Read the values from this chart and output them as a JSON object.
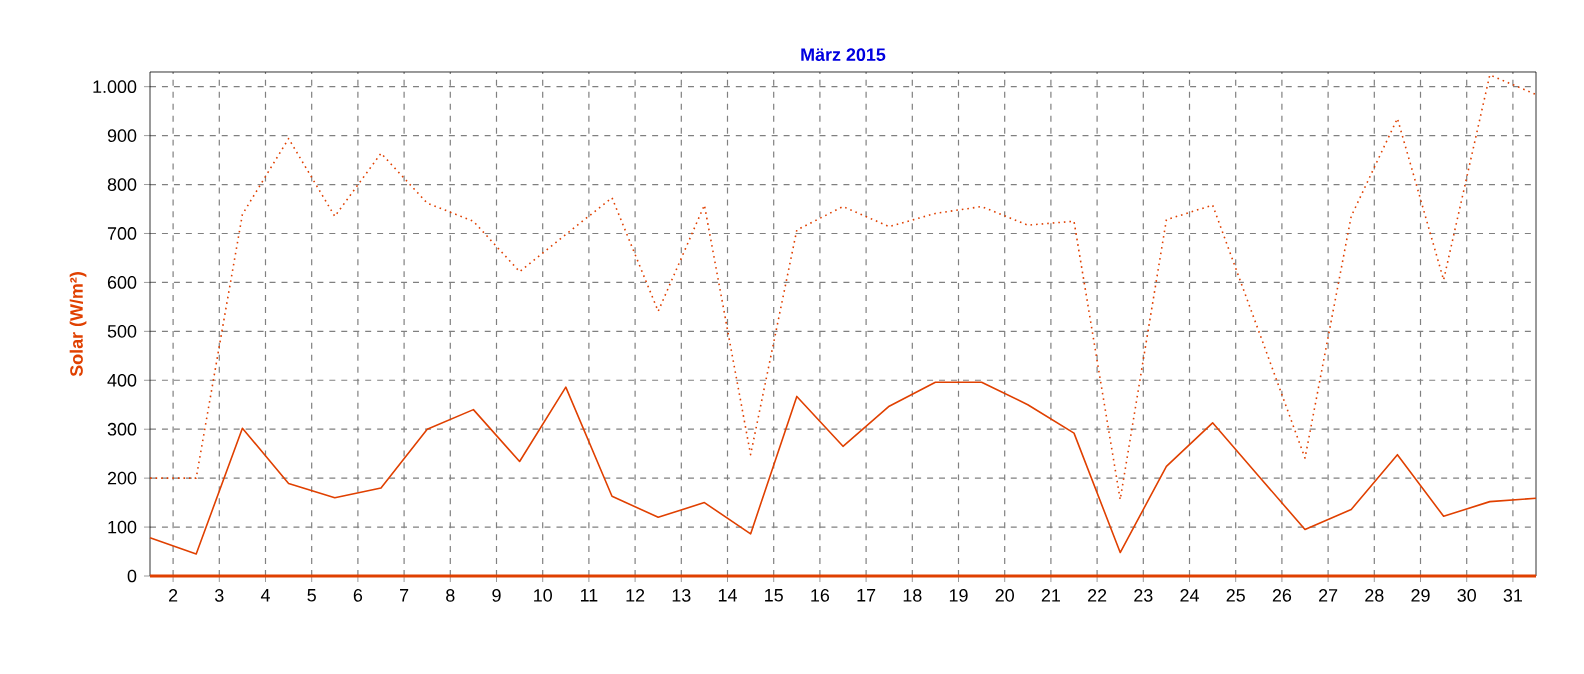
{
  "chart_data": {
    "type": "line",
    "title": "März 2015",
    "ylabel": "Solar  (W/m²)",
    "x": [
      1.5,
      2.5,
      3.5,
      4.5,
      5.5,
      6.5,
      7.5,
      8.5,
      9.5,
      10.5,
      11.5,
      12.5,
      13.5,
      14.5,
      15.5,
      16.5,
      17.5,
      18.5,
      19.5,
      20.5,
      21.5,
      22.5,
      23.5,
      24.5,
      25.5,
      26.5,
      27.5,
      28.5,
      29.5,
      30.5,
      31.5
    ],
    "series": [
      {
        "color": "#e04000",
        "line_style": "solid",
        "values": [
          78,
          45,
          302,
          189,
          160,
          180,
          300,
          340,
          234,
          386,
          163,
          120,
          150,
          86,
          367,
          265,
          347,
          396,
          396,
          350,
          292,
          48,
          224,
          313,
          204,
          95,
          136,
          248,
          122,
          152,
          159
        ]
      },
      {
        "color": "#e04000",
        "line_style": "dotted",
        "values": [
          200,
          200,
          739,
          894,
          735,
          864,
          762,
          725,
          622,
          698,
          773,
          541,
          758,
          248,
          707,
          755,
          714,
          741,
          755,
          717,
          725,
          156,
          728,
          758,
          500,
          241,
          735,
          935,
          605,
          1024,
          984
        ]
      },
      {
        "color": "#e04000",
        "line_style": "solid",
        "values": [
          0,
          0,
          0,
          0,
          0,
          0,
          0,
          0,
          0,
          0,
          0,
          0,
          0,
          0,
          0,
          0,
          0,
          0,
          0,
          0,
          0,
          0,
          0,
          0,
          0,
          0,
          0,
          0,
          0,
          0,
          0
        ]
      }
    ],
    "xlim": [
      1.5,
      31.5
    ],
    "xticks": [
      2,
      3,
      4,
      5,
      6,
      7,
      8,
      9,
      10,
      11,
      12,
      13,
      14,
      15,
      16,
      17,
      18,
      19,
      20,
      21,
      22,
      23,
      24,
      25,
      26,
      27,
      28,
      29,
      30,
      31
    ],
    "ylim": [
      0,
      1030
    ],
    "yticks": [
      0,
      100,
      200,
      300,
      400,
      500,
      600,
      700,
      800,
      900,
      {
        "value": 1000,
        "label": "1.000"
      }
    ],
    "grid": true,
    "marker": "none"
  }
}
